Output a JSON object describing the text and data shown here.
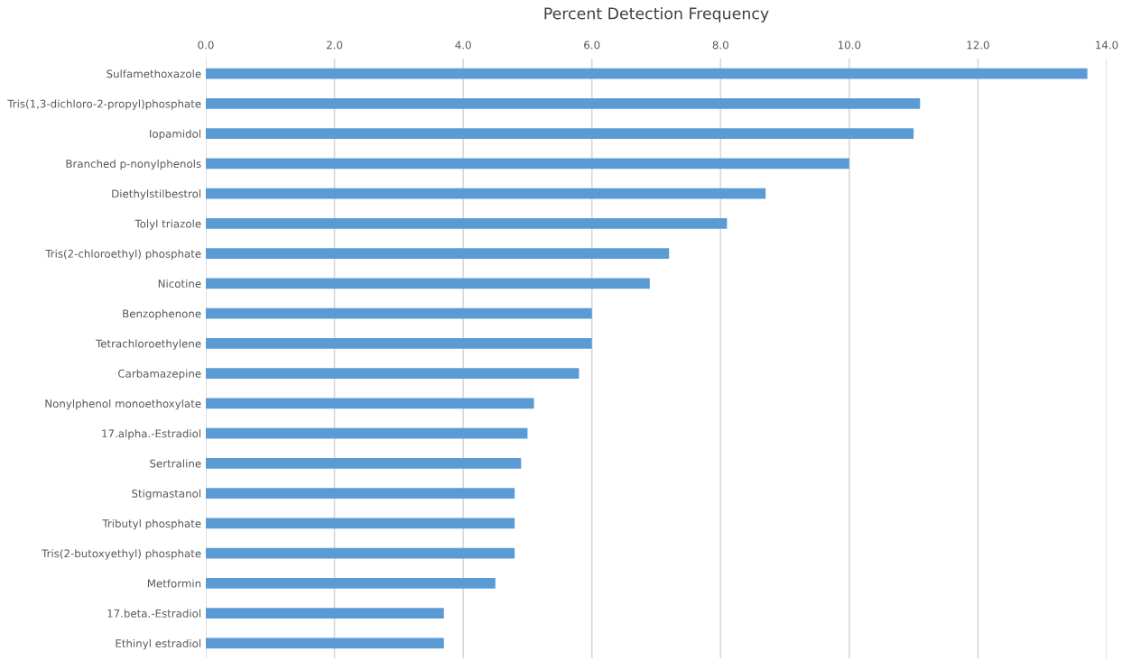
{
  "chart_data": {
    "type": "bar",
    "orientation": "horizontal",
    "title": "Percent Detection Frequency",
    "categories": [
      "Sulfamethoxazole",
      "Tris(1,3-dichloro-2-propyl)phosphate",
      "Iopamidol",
      "Branched p-nonylphenols",
      "Diethylstilbestrol",
      "Tolyl triazole",
      "Tris(2-chloroethyl) phosphate",
      "Nicotine",
      "Benzophenone",
      "Tetrachloroethylene",
      "Carbamazepine",
      "Nonylphenol monoethoxylate",
      "17.alpha.-Estradiol",
      "Sertraline",
      "Stigmastanol",
      "Tributyl phosphate",
      "Tris(2-butoxyethyl) phosphate",
      "Metformin",
      "17.beta.-Estradiol",
      "Ethinyl estradiol"
    ],
    "values": [
      13.7,
      11.1,
      11.0,
      10.0,
      8.7,
      8.1,
      7.2,
      6.9,
      6.0,
      6.0,
      5.8,
      5.1,
      5.0,
      4.9,
      4.8,
      4.8,
      4.8,
      4.5,
      3.7,
      3.7
    ],
    "color": "#5b9bd5",
    "xlim": [
      0,
      14
    ],
    "xticks": [
      {
        "value": 0,
        "label": "0.0"
      },
      {
        "value": 2,
        "label": "2.0"
      },
      {
        "value": 4,
        "label": "4.0"
      },
      {
        "value": 6,
        "label": "6.0"
      },
      {
        "value": 8,
        "label": "8.0"
      },
      {
        "value": 10,
        "label": "10.0"
      },
      {
        "value": 12,
        "label": "12.0"
      },
      {
        "value": 14,
        "label": "14.0"
      }
    ],
    "grid": "x"
  }
}
